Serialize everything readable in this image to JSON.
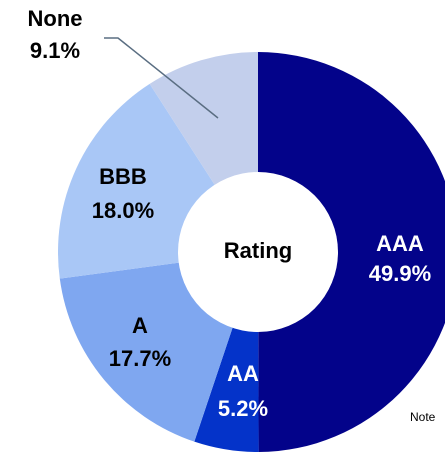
{
  "chart_data": {
    "type": "donut",
    "center_label": "Rating",
    "categories": [
      "AAA",
      "AA",
      "A",
      "BBB",
      "None"
    ],
    "values": [
      49.9,
      5.2,
      17.7,
      18.0,
      9.1
    ],
    "value_labels": [
      "49.9%",
      "5.2%",
      "17.7%",
      "18.0%",
      "9.1%"
    ],
    "colors": [
      "#03038a",
      "#0433c9",
      "#7fa7f0",
      "#a9c7f6",
      "#c3cfec"
    ],
    "note": "Note"
  }
}
